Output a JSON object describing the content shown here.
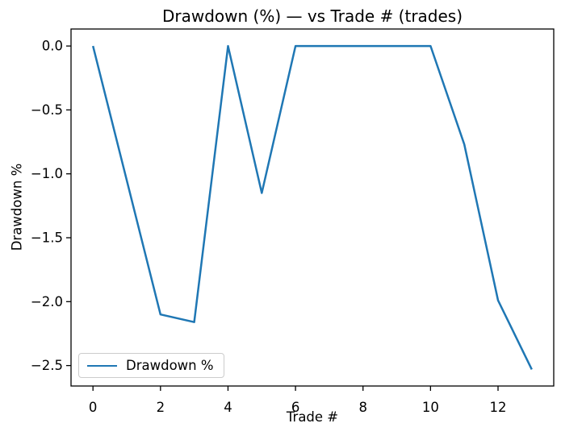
{
  "chart_data": {
    "type": "line",
    "title": "Drawdown (%) — vs Trade # (trades)",
    "xlabel": "Trade #",
    "ylabel": "Drawdown %",
    "x": [
      0,
      1,
      2,
      3,
      4,
      5,
      6,
      7,
      8,
      9,
      10,
      11,
      12,
      13
    ],
    "series": [
      {
        "name": "Drawdown %",
        "color": "#1f77b4",
        "values": [
          0.0,
          -1.05,
          -2.1,
          -2.16,
          0.0,
          -1.15,
          0.0,
          0.0,
          0.0,
          0.0,
          0.0,
          -0.77,
          -1.99,
          -2.53
        ]
      }
    ],
    "xticks": {
      "values": [
        0,
        2,
        4,
        6,
        8,
        10,
        12
      ],
      "labels": [
        "0",
        "2",
        "4",
        "6",
        "8",
        "10",
        "12"
      ]
    },
    "yticks": {
      "values": [
        0.0,
        -0.5,
        -1.0,
        -1.5,
        -2.0,
        -2.5
      ],
      "labels": [
        "0.0",
        "−0.5",
        "−1.0",
        "−1.5",
        "−2.0",
        "−2.5"
      ]
    },
    "xlim": [
      -0.65,
      13.65
    ],
    "ylim": [
      -2.66,
      0.133
    ],
    "grid": false,
    "legend": {
      "position": "lower left",
      "entries": [
        {
          "label": "Drawdown %",
          "color": "#1f77b4"
        }
      ]
    },
    "axis_color": "#000000",
    "background": "#ffffff"
  }
}
